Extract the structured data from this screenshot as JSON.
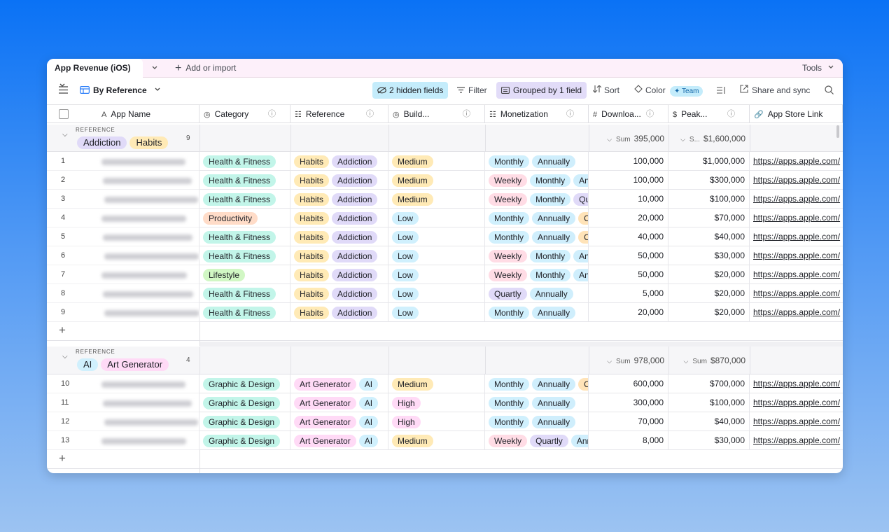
{
  "tabs": {
    "table": "App Revenue (iOS)",
    "add": "Add or import",
    "tools": "Tools"
  },
  "toolbar": {
    "view": "By Reference",
    "hidden": "2 hidden fields",
    "filter": "Filter",
    "group": "Grouped by 1 field",
    "sort": "Sort",
    "color": "Color",
    "color_badge": "Team",
    "share": "Share and sync"
  },
  "columns": [
    "App Name",
    "Category",
    "Reference",
    "Build...",
    "Monetization",
    "Downloa...",
    "Peak...",
    "App Store Link"
  ],
  "tag_colors": {
    "Health & Fitness": "#c2f5e9",
    "Graphic & Design": "#c2f5e9",
    "Productivity": "#ffdcc8",
    "Lifestyle": "#d1f7c4",
    "Habits": "#ffeab6",
    "Addiction": "#e0daf8",
    "Art Generator": "#ffdaf6",
    "AI": "#d0f0fd",
    "Medium": "#ffeab6",
    "Low": "#d0f0fd",
    "High": "#ffdaf6",
    "Monthly": "#d0f0fd",
    "Annually": "#cfeefc",
    "Ann": "#cfeefc",
    "Weekly": "#ffdce5",
    "Quartly": "#e0daf8",
    "Qu": "#e0daf8",
    "O": "#ffe3b8"
  },
  "groups": [
    {
      "field": "REFERENCE",
      "tags": [
        "Addiction",
        "Habits"
      ],
      "count": "9",
      "downloads_sum": {
        "label": "Sum",
        "value": "395,000"
      },
      "peak_sum": {
        "label": "S...",
        "value": "$1,600,000"
      },
      "rows": [
        {
          "num": "1",
          "category": "Health & Fitness",
          "reference": [
            "Habits",
            "Addiction"
          ],
          "build": "Medium",
          "monetization": [
            "Monthly",
            "Annually"
          ],
          "downloads": "100,000",
          "peak": "$1,000,000",
          "link": "https://apps.apple.com/"
        },
        {
          "num": "2",
          "category": "Health & Fitness",
          "reference": [
            "Habits",
            "Addiction"
          ],
          "build": "Medium",
          "monetization": [
            "Weekly",
            "Monthly",
            "Ann"
          ],
          "downloads": "100,000",
          "peak": "$300,000",
          "link": "https://apps.apple.com/"
        },
        {
          "num": "3",
          "category": "Health & Fitness",
          "reference": [
            "Habits",
            "Addiction"
          ],
          "build": "Medium",
          "monetization": [
            "Weekly",
            "Monthly",
            "Qu"
          ],
          "downloads": "10,000",
          "peak": "$100,000",
          "link": "https://apps.apple.com/"
        },
        {
          "num": "4",
          "category": "Productivity",
          "reference": [
            "Habits",
            "Addiction"
          ],
          "build": "Low",
          "monetization": [
            "Monthly",
            "Annually",
            "O"
          ],
          "downloads": "20,000",
          "peak": "$70,000",
          "link": "https://apps.apple.com/"
        },
        {
          "num": "5",
          "category": "Health & Fitness",
          "reference": [
            "Habits",
            "Addiction"
          ],
          "build": "Low",
          "monetization": [
            "Monthly",
            "Annually",
            "O"
          ],
          "downloads": "40,000",
          "peak": "$40,000",
          "link": "https://apps.apple.com/"
        },
        {
          "num": "6",
          "category": "Health & Fitness",
          "reference": [
            "Habits",
            "Addiction"
          ],
          "build": "Low",
          "monetization": [
            "Weekly",
            "Monthly",
            "Ann"
          ],
          "downloads": "50,000",
          "peak": "$30,000",
          "link": "https://apps.apple.com/"
        },
        {
          "num": "7",
          "category": "Lifestyle",
          "reference": [
            "Habits",
            "Addiction"
          ],
          "build": "Low",
          "monetization": [
            "Weekly",
            "Monthly",
            "Ann"
          ],
          "downloads": "50,000",
          "peak": "$20,000",
          "link": "https://apps.apple.com/"
        },
        {
          "num": "8",
          "category": "Health & Fitness",
          "reference": [
            "Habits",
            "Addiction"
          ],
          "build": "Low",
          "monetization": [
            "Quartly",
            "Annually"
          ],
          "downloads": "5,000",
          "peak": "$20,000",
          "link": "https://apps.apple.com/"
        },
        {
          "num": "9",
          "category": "Health & Fitness",
          "reference": [
            "Habits",
            "Addiction"
          ],
          "build": "Low",
          "monetization": [
            "Monthly",
            "Annually"
          ],
          "downloads": "20,000",
          "peak": "$20,000",
          "link": "https://apps.apple.com/"
        }
      ]
    },
    {
      "field": "REFERENCE",
      "tags": [
        "AI",
        "Art Generator"
      ],
      "count": "4",
      "downloads_sum": {
        "label": "Sum",
        "value": "978,000"
      },
      "peak_sum": {
        "label": "Sum",
        "value": "$870,000"
      },
      "rows": [
        {
          "num": "10",
          "category": "Graphic & Design",
          "reference": [
            "Art Generator",
            "AI"
          ],
          "build": "Medium",
          "monetization": [
            "Monthly",
            "Annually",
            "O"
          ],
          "downloads": "600,000",
          "peak": "$700,000",
          "link": "https://apps.apple.com/"
        },
        {
          "num": "11",
          "category": "Graphic & Design",
          "reference": [
            "Art Generator",
            "AI"
          ],
          "build": "High",
          "monetization": [
            "Monthly",
            "Annually"
          ],
          "downloads": "300,000",
          "peak": "$100,000",
          "link": "https://apps.apple.com/"
        },
        {
          "num": "12",
          "category": "Graphic & Design",
          "reference": [
            "Art Generator",
            "AI"
          ],
          "build": "High",
          "monetization": [
            "Monthly",
            "Annually"
          ],
          "downloads": "70,000",
          "peak": "$40,000",
          "link": "https://apps.apple.com/"
        },
        {
          "num": "13",
          "category": "Graphic & Design",
          "reference": [
            "Art Generator",
            "AI"
          ],
          "build": "Medium",
          "monetization": [
            "Weekly",
            "Quartly",
            "Ann"
          ],
          "downloads": "8,000",
          "peak": "$30,000",
          "link": "https://apps.apple.com/"
        }
      ]
    }
  ]
}
